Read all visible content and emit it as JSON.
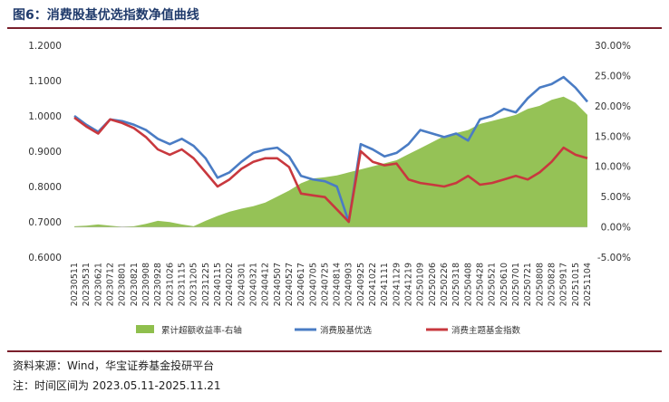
{
  "title": "图6：消费股基优选指数净值曲线",
  "footer": {
    "source": "资料来源：Wind，华宝证券基金投研平台",
    "note": "注：时间区间为 2023.05.11-2025.11.21"
  },
  "colors": {
    "area": "#8fbf4d",
    "line_fund": "#4a7cc4",
    "line_index": "#c8383e",
    "title_rule": "#7a1f2b"
  },
  "chart_data": {
    "type": "line",
    "title": "",
    "xlabel": "",
    "ylabel": "",
    "ylim": [
      0.6,
      1.2
    ],
    "y2lim": [
      -0.05,
      0.3
    ],
    "yticks": [
      "0.6000",
      "0.7000",
      "0.8000",
      "0.9000",
      "1.0000",
      "1.1000",
      "1.2000"
    ],
    "y2ticks": [
      "-5.00%",
      "0.00%",
      "5.00%",
      "10.00%",
      "15.00%",
      "20.00%",
      "25.00%",
      "30.00%"
    ],
    "xticks": [
      "20230511",
      "20230531",
      "20230621",
      "20230712",
      "20230801",
      "20230821",
      "20230908",
      "20230928",
      "20231026",
      "20231115",
      "20231205",
      "20231225",
      "20240115",
      "20240202",
      "20240301",
      "20240321",
      "20240412",
      "20240507",
      "20240527",
      "20240617",
      "20240705",
      "20240725",
      "20240814",
      "20240903",
      "20240925",
      "20241022",
      "20241111",
      "20241129",
      "20241219",
      "20250109",
      "20250206",
      "20250226",
      "20250318",
      "20250408",
      "20250428",
      "20250521",
      "20250610",
      "20250701",
      "20250721",
      "20250808",
      "20250828",
      "20250917",
      "20251015",
      "20251104"
    ],
    "legend_position": "bottom",
    "x_index": [
      0,
      1,
      2,
      3,
      4,
      5,
      6,
      7,
      8,
      9,
      10,
      11,
      12,
      13,
      14,
      15,
      16,
      17,
      18,
      19,
      20,
      21,
      22,
      23,
      24,
      25,
      26,
      27,
      28,
      29,
      30,
      31,
      32,
      33,
      34,
      35,
      36,
      37,
      38,
      39,
      40,
      41,
      42,
      43
    ],
    "series": [
      {
        "name": "累计超额收益率-右轴",
        "axis": "right",
        "kind": "area",
        "values": [
          0.001,
          0.002,
          0.004,
          0.002,
          0.0,
          0.001,
          0.005,
          0.01,
          0.008,
          0.004,
          0.001,
          0.01,
          0.018,
          0.025,
          0.03,
          0.034,
          0.04,
          0.05,
          0.06,
          0.072,
          0.08,
          0.082,
          0.085,
          0.09,
          0.095,
          0.1,
          0.105,
          0.11,
          0.12,
          0.13,
          0.14,
          0.15,
          0.155,
          0.16,
          0.17,
          0.175,
          0.18,
          0.185,
          0.195,
          0.2,
          0.21,
          0.215,
          0.205,
          0.185
        ]
      },
      {
        "name": "消费股基优选",
        "axis": "left",
        "kind": "line",
        "values": [
          1.0,
          0.975,
          0.955,
          0.99,
          0.985,
          0.975,
          0.96,
          0.935,
          0.92,
          0.935,
          0.915,
          0.88,
          0.825,
          0.84,
          0.87,
          0.895,
          0.905,
          0.91,
          0.885,
          0.83,
          0.82,
          0.815,
          0.8,
          0.7,
          0.92,
          0.905,
          0.885,
          0.895,
          0.92,
          0.96,
          0.95,
          0.94,
          0.95,
          0.93,
          0.99,
          1.0,
          1.02,
          1.01,
          1.05,
          1.08,
          1.09,
          1.11,
          1.08,
          1.04
        ]
      },
      {
        "name": "消费主题基金指数",
        "axis": "left",
        "kind": "line",
        "values": [
          0.995,
          0.97,
          0.95,
          0.99,
          0.98,
          0.965,
          0.94,
          0.905,
          0.89,
          0.905,
          0.88,
          0.84,
          0.8,
          0.82,
          0.85,
          0.87,
          0.88,
          0.88,
          0.855,
          0.78,
          0.775,
          0.77,
          0.735,
          0.7,
          0.9,
          0.87,
          0.86,
          0.865,
          0.82,
          0.81,
          0.805,
          0.8,
          0.81,
          0.83,
          0.805,
          0.81,
          0.82,
          0.83,
          0.82,
          0.84,
          0.87,
          0.91,
          0.89,
          0.88
        ]
      }
    ]
  }
}
